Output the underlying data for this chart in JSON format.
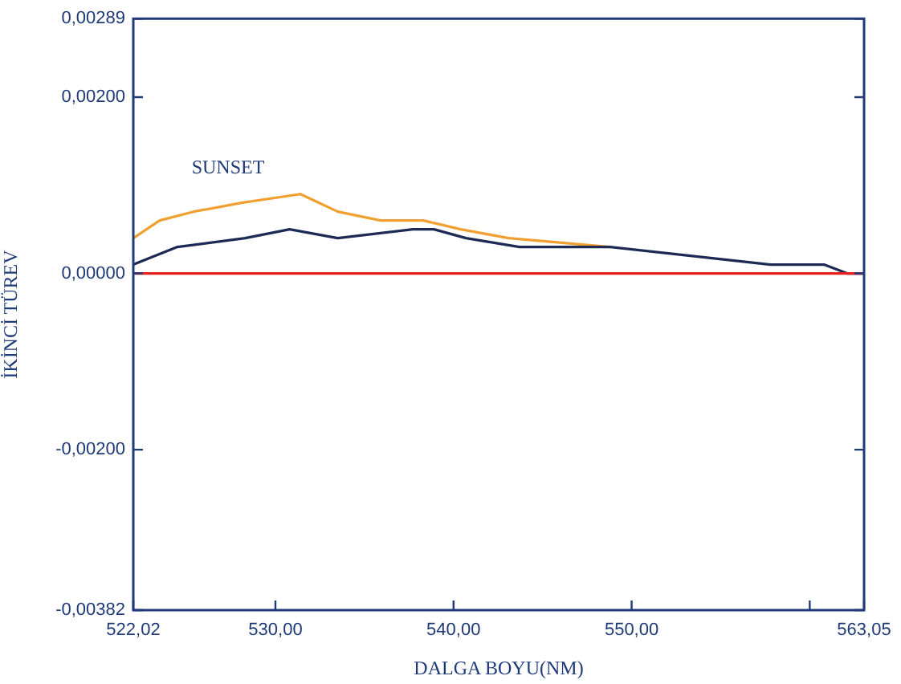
{
  "chart_data": {
    "type": "line",
    "xlabel": "DALGA BOYU(NM)",
    "ylabel": "İKİNCİ TÜREV",
    "xlim": [
      522.02,
      563.05
    ],
    "xticks": [
      {
        "value": 522.02,
        "label": "522,02"
      },
      {
        "value": 530,
        "label": "530,00"
      },
      {
        "value": 540,
        "label": "540,00"
      },
      {
        "value": 550,
        "label": "550,00"
      },
      {
        "value": 560,
        "label": null
      },
      {
        "value": 563.05,
        "label": "563,05"
      }
    ],
    "ylim": [
      -0.00382,
      0.00289
    ],
    "yticks": [
      {
        "value": -0.00382,
        "label": "-0,00382"
      },
      {
        "value": -0.002,
        "label": "-0,00200"
      },
      {
        "value": 0,
        "label": "0,00000"
      },
      {
        "value": 0.002,
        "label": "0,00200"
      },
      {
        "value": 0.00289,
        "label": "0,00289"
      }
    ],
    "grid": false,
    "legend": false,
    "marker": "none",
    "line_style": "solid",
    "series": [
      {
        "name": "SUNSET",
        "color": "#f0a030",
        "x": [
          522.02,
          523.5,
          525.4,
          528.1,
          531.4,
          533.5,
          535.9,
          538.3,
          540.4,
          543.1,
          548.8
        ],
        "values": [
          0.0004,
          0.0006,
          0.0007,
          0.0008,
          0.0009,
          0.0007,
          0.0006,
          0.0006,
          0.0005,
          0.0004,
          0.0003
        ]
      },
      {
        "color": "#1c2a55",
        "x": [
          522.02,
          524.5,
          528.3,
          530.8,
          533.5,
          537.7,
          538.9,
          540.7,
          543.7,
          548.8,
          553.3,
          557.8,
          560.8,
          562.1,
          563.05
        ],
        "values": [
          0.0001,
          0.0003,
          0.0004,
          0.0005,
          0.0004,
          0.0005,
          0.0005,
          0.0004,
          0.0003,
          0.0003,
          0.0002,
          0.0001,
          0.0001,
          0,
          0
        ]
      },
      {
        "color": "#e82020",
        "x": [
          522.02,
          563.05
        ],
        "values": [
          0,
          0
        ]
      }
    ]
  }
}
